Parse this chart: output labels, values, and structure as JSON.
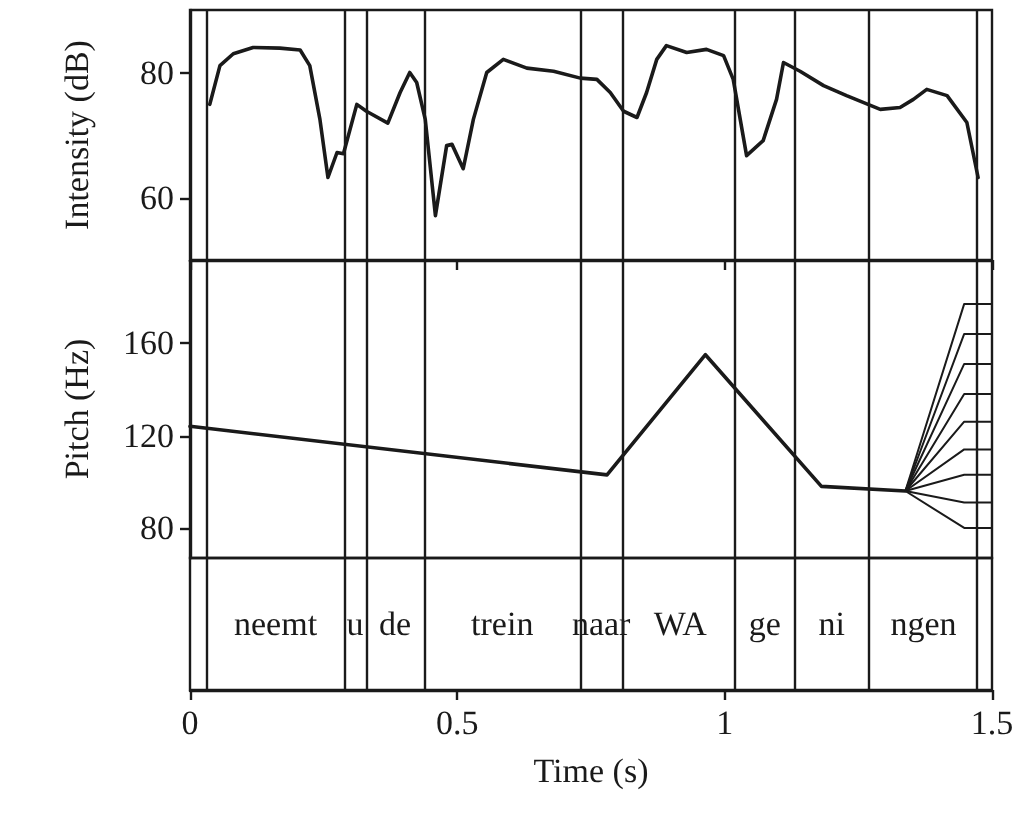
{
  "chart_data": [
    {
      "type": "line",
      "ylabel": "Intensity (dB)",
      "xlim": [
        0,
        1.5
      ],
      "ylim": [
        50,
        90
      ],
      "yticks": [
        60,
        80
      ],
      "tick_labels": "y",
      "marker": "none",
      "line_style": "solid",
      "series": [
        {
          "color": "#1a1a1a",
          "x": [
            0.037,
            0.056,
            0.081,
            0.118,
            0.168,
            0.206,
            0.224,
            0.243,
            0.258,
            0.275,
            0.287,
            0.312,
            0.33,
            0.37,
            0.393,
            0.411,
            0.424,
            0.44,
            0.459,
            0.48,
            0.49,
            0.511,
            0.53,
            0.555,
            0.586,
            0.63,
            0.68,
            0.73,
            0.761,
            0.786,
            0.811,
            0.836,
            0.854,
            0.873,
            0.891,
            0.929,
            0.966,
            0.998,
            1.016,
            1.041,
            1.072,
            1.097,
            1.11,
            1.141,
            1.185,
            1.228,
            1.291,
            1.328,
            1.353,
            1.378,
            1.416,
            1.453,
            1.474
          ],
          "values": [
            74.9,
            81.1,
            83.0,
            84.0,
            83.9,
            83.6,
            81.1,
            72.5,
            63.2,
            67.2,
            67.0,
            74.9,
            73.8,
            71.9,
            76.8,
            80.0,
            78.4,
            72.5,
            57.1,
            68.3,
            68.5,
            64.6,
            72.5,
            80.0,
            82.1,
            80.7,
            80.2,
            79.1,
            78.9,
            76.8,
            73.8,
            72.8,
            76.8,
            82.1,
            84.3,
            83.2,
            83.7,
            82.7,
            78.9,
            66.7,
            69.1,
            75.7,
            81.6,
            80.2,
            77.9,
            76.3,
            74.1,
            74.4,
            75.7,
            77.3,
            76.3,
            72.0,
            63.2
          ]
        }
      ],
      "ref_lines": [
        {
          "axis": "x",
          "value": 0.03
        },
        {
          "axis": "x",
          "value": 0.29
        },
        {
          "axis": "x",
          "value": 0.327
        },
        {
          "axis": "x",
          "value": 0.44
        },
        {
          "axis": "x",
          "value": 0.728
        },
        {
          "axis": "x",
          "value": 0.81
        },
        {
          "axis": "x",
          "value": 1.024
        },
        {
          "axis": "x",
          "value": 1.126
        },
        {
          "axis": "x",
          "value": 1.274
        },
        {
          "axis": "x",
          "value": 1.47
        }
      ]
    },
    {
      "type": "line",
      "ylabel": "Pitch (Hz)",
      "xlabel": "Time (s)",
      "xlim": [
        0,
        1.5
      ],
      "xticks": [
        0,
        0.5,
        1,
        1.5
      ],
      "ylim": [
        67,
        196
      ],
      "yticks": [
        80,
        120,
        160
      ],
      "marker": "none",
      "line_style": "solid",
      "annotations": [
        "neemt",
        "u",
        "de",
        "trein",
        "naar",
        "WA",
        "ge",
        "ni",
        "ngen"
      ],
      "series": [
        {
          "color": "#1a1a1a",
          "x": [
            0,
            0.78,
            0.964,
            1.181,
            1.338
          ],
          "values": [
            124,
            103,
            155,
            98,
            96
          ]
        },
        {
          "color": "#1a1a1a",
          "x": [
            1.338,
            1.448,
            1.5
          ],
          "values": [
            96,
            177,
            177
          ]
        },
        {
          "color": "#1a1a1a",
          "x": [
            1.338,
            1.448,
            1.5
          ],
          "values": [
            96,
            164,
            164
          ]
        },
        {
          "color": "#1a1a1a",
          "x": [
            1.338,
            1.448,
            1.5
          ],
          "values": [
            96,
            151,
            151
          ]
        },
        {
          "color": "#1a1a1a",
          "x": [
            1.338,
            1.448,
            1.5
          ],
          "values": [
            96,
            138,
            138
          ]
        },
        {
          "color": "#1a1a1a",
          "x": [
            1.338,
            1.448,
            1.5
          ],
          "values": [
            96,
            126,
            126
          ]
        },
        {
          "color": "#1a1a1a",
          "x": [
            1.338,
            1.448,
            1.5
          ],
          "values": [
            96,
            114,
            114
          ]
        },
        {
          "color": "#1a1a1a",
          "x": [
            1.338,
            1.448,
            1.5
          ],
          "values": [
            96,
            103,
            103
          ]
        },
        {
          "color": "#1a1a1a",
          "x": [
            1.338,
            1.448,
            1.5
          ],
          "values": [
            96,
            91,
            91
          ]
        },
        {
          "color": "#1a1a1a",
          "x": [
            1.338,
            1.448,
            1.5
          ],
          "values": [
            96,
            80,
            80
          ]
        }
      ],
      "ref_lines": [
        {
          "axis": "x",
          "value": 0.03
        },
        {
          "axis": "x",
          "value": 0.29
        },
        {
          "axis": "x",
          "value": 0.327
        },
        {
          "axis": "x",
          "value": 0.44
        },
        {
          "axis": "x",
          "value": 0.728
        },
        {
          "axis": "x",
          "value": 0.81
        },
        {
          "axis": "x",
          "value": 1.024
        },
        {
          "axis": "x",
          "value": 1.126
        },
        {
          "axis": "x",
          "value": 1.274
        },
        {
          "axis": "x",
          "value": 1.47
        }
      ]
    }
  ]
}
